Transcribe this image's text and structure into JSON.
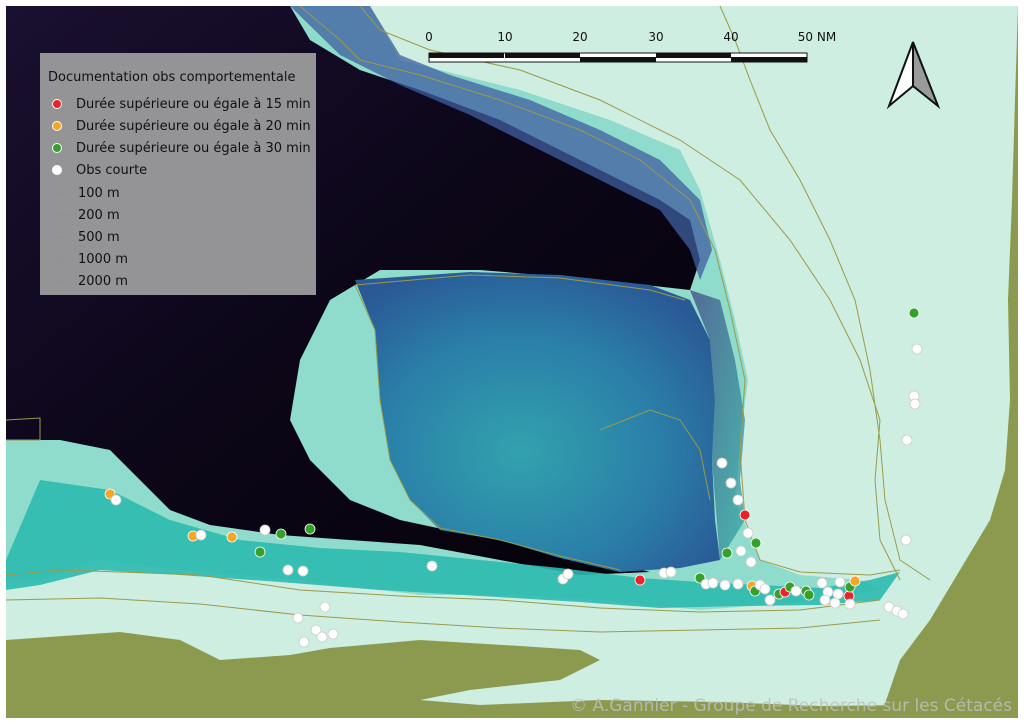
{
  "legend": {
    "title": "Documentation obs comportementale",
    "points": [
      {
        "label": "Durée supérieure ou égale à 15 min",
        "color": "#e8242a"
      },
      {
        "label": "Durée supérieure ou égale à 20 min",
        "color": "#f5a623"
      },
      {
        "label": "Durée supérieure ou égale à 30 min",
        "color": "#35a02a"
      },
      {
        "label": "Obs courte",
        "color": "#ffffff"
      }
    ],
    "isobaths": [
      "100 m",
      "200 m",
      "500 m",
      "1000 m",
      "2000 m"
    ]
  },
  "scale_bar": {
    "labels": [
      "0",
      "10",
      "20",
      "30",
      "40",
      "50 NM"
    ]
  },
  "north_arrow": "north-arrow-icon",
  "credit": "© A.Gannier - Groupe de Recherche sur les Cétacés",
  "colors": {
    "land": "#8c9a4f",
    "deep": "#0a0412",
    "plateau": "#2a8fa6",
    "shelf": "#cdeee0",
    "contour": "#9a9a4a"
  }
}
